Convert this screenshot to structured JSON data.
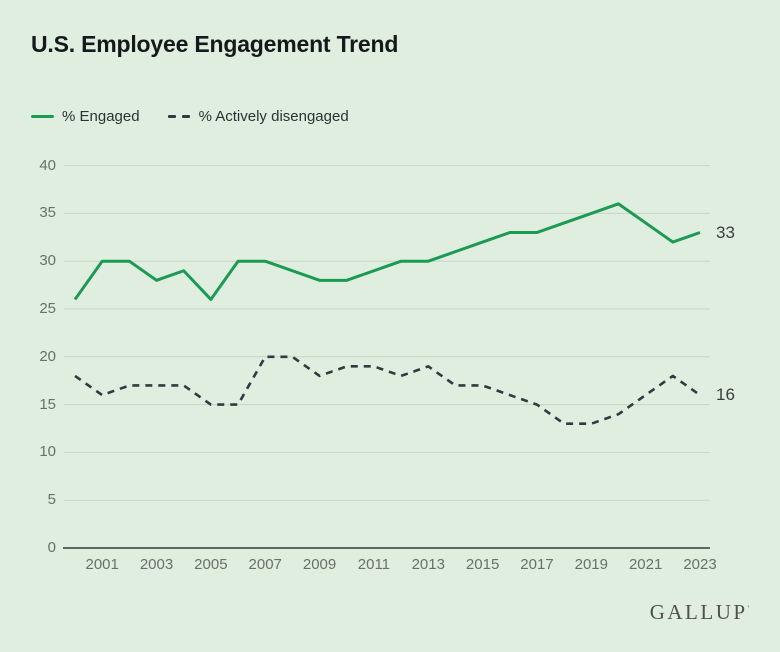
{
  "title": "U.S. Employee Engagement Trend",
  "legend": {
    "engaged_label": "% Engaged",
    "disengaged_label": "% Actively disengaged"
  },
  "logo": {
    "text": "GALLUP",
    "mark": "'"
  },
  "colors": {
    "background": "#dfeedf",
    "engaged_line": "#1b9a53",
    "disengaged_line": "#2d3c42",
    "gridline": "#c9d4c8",
    "axis_line": "#35393a",
    "tick_text": "#6a6f6a",
    "title_text": "#15191b"
  },
  "chart_data": {
    "type": "line",
    "title": "U.S. Employee Engagement Trend",
    "x": [
      2000,
      2001,
      2002,
      2003,
      2004,
      2005,
      2006,
      2007,
      2008,
      2009,
      2010,
      2011,
      2012,
      2013,
      2014,
      2015,
      2016,
      2017,
      2018,
      2019,
      2020,
      2021,
      2022,
      2023
    ],
    "series": [
      {
        "name": "% Engaged",
        "style": "solid",
        "values": [
          26,
          30,
          30,
          28,
          29,
          26,
          30,
          30,
          29,
          28,
          28,
          29,
          30,
          30,
          31,
          32,
          33,
          33,
          34,
          35,
          36,
          34,
          32,
          33
        ]
      },
      {
        "name": "% Actively disengaged",
        "style": "dashed",
        "values": [
          18,
          16,
          17,
          17,
          17,
          15,
          15,
          20,
          20,
          18,
          19,
          19,
          18,
          19,
          17,
          17,
          16,
          15,
          13,
          13,
          14,
          16,
          18,
          16
        ]
      }
    ],
    "end_labels": {
      "engaged": "33",
      "disengaged": "16"
    },
    "y_ticks": [
      0,
      5,
      10,
      15,
      20,
      25,
      30,
      35,
      40
    ],
    "x_tick_labels": [
      2001,
      2003,
      2005,
      2007,
      2009,
      2011,
      2013,
      2015,
      2017,
      2019,
      2021,
      2023
    ],
    "ylim": [
      0,
      40
    ],
    "grid": "horizontal",
    "legend_position": "top-left"
  }
}
